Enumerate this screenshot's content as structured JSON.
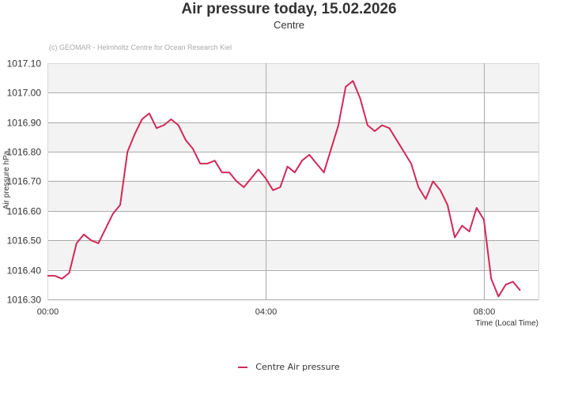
{
  "header": {
    "title": "Air pressure today, 15.02.2026",
    "subtitle": "Centre",
    "credit": "(c) GEOMAR - Helmholtz Centre for Ocean Research Kiel"
  },
  "legend": {
    "items": [
      {
        "label": "Centre Air pressure",
        "color": "#d2285a"
      }
    ]
  },
  "axes": {
    "ylabel": "Air pressure hPa",
    "xlabel": "Time (Local Time)",
    "yticks": [
      "1017.10",
      "1017.00",
      "1016.90",
      "1016.80",
      "1016.70",
      "1016.60",
      "1016.50",
      "1016.40",
      "1016.30"
    ],
    "xticks": [
      "00:00",
      "04:00",
      "08:00"
    ]
  },
  "chart_data": {
    "type": "line",
    "title": "Air pressure today, 15.02.2026",
    "subtitle": "Centre",
    "xlabel": "Time (Local Time)",
    "ylabel": "Air pressure hPa",
    "ylim": [
      1016.3,
      1017.1
    ],
    "xlim": [
      "00:00",
      "09:00"
    ],
    "grid": true,
    "legend_position": "bottom",
    "series": [
      {
        "name": "Centre Air pressure",
        "color": "#d2285a",
        "x": [
          "00:00",
          "00:08",
          "00:16",
          "00:24",
          "00:32",
          "00:40",
          "00:48",
          "00:56",
          "01:04",
          "01:12",
          "01:20",
          "01:28",
          "01:36",
          "01:44",
          "01:52",
          "02:00",
          "02:08",
          "02:16",
          "02:24",
          "02:32",
          "02:40",
          "02:48",
          "02:56",
          "03:04",
          "03:12",
          "03:20",
          "03:28",
          "03:36",
          "03:44",
          "03:52",
          "04:00",
          "04:08",
          "04:16",
          "04:24",
          "04:32",
          "04:40",
          "04:48",
          "04:56",
          "05:04",
          "05:12",
          "05:20",
          "05:28",
          "05:36",
          "05:44",
          "05:52",
          "06:00",
          "06:08",
          "06:16",
          "06:24",
          "06:32",
          "06:40",
          "06:48",
          "06:56",
          "07:04",
          "07:12",
          "07:20",
          "07:28",
          "07:36",
          "07:44",
          "07:52",
          "08:00",
          "08:08",
          "08:16",
          "08:24",
          "08:32",
          "08:40"
        ],
        "values": [
          1016.38,
          1016.38,
          1016.37,
          1016.39,
          1016.49,
          1016.52,
          1016.5,
          1016.49,
          1016.54,
          1016.59,
          1016.62,
          1016.8,
          1016.86,
          1016.91,
          1016.93,
          1016.88,
          1016.89,
          1016.91,
          1016.89,
          1016.84,
          1016.81,
          1016.76,
          1016.76,
          1016.77,
          1016.73,
          1016.73,
          1016.7,
          1016.68,
          1016.71,
          1016.74,
          1016.71,
          1016.67,
          1016.68,
          1016.75,
          1016.73,
          1016.77,
          1016.79,
          1016.76,
          1016.73,
          1016.81,
          1016.89,
          1017.02,
          1017.04,
          1016.98,
          1016.89,
          1016.87,
          1016.89,
          1016.88,
          1016.84,
          1016.8,
          1016.76,
          1016.68,
          1016.64,
          1016.7,
          1016.67,
          1016.62,
          1016.51,
          1016.55,
          1016.53,
          1016.61,
          1016.57,
          1016.37,
          1016.31,
          1016.35,
          1016.36,
          1016.33
        ]
      }
    ]
  }
}
